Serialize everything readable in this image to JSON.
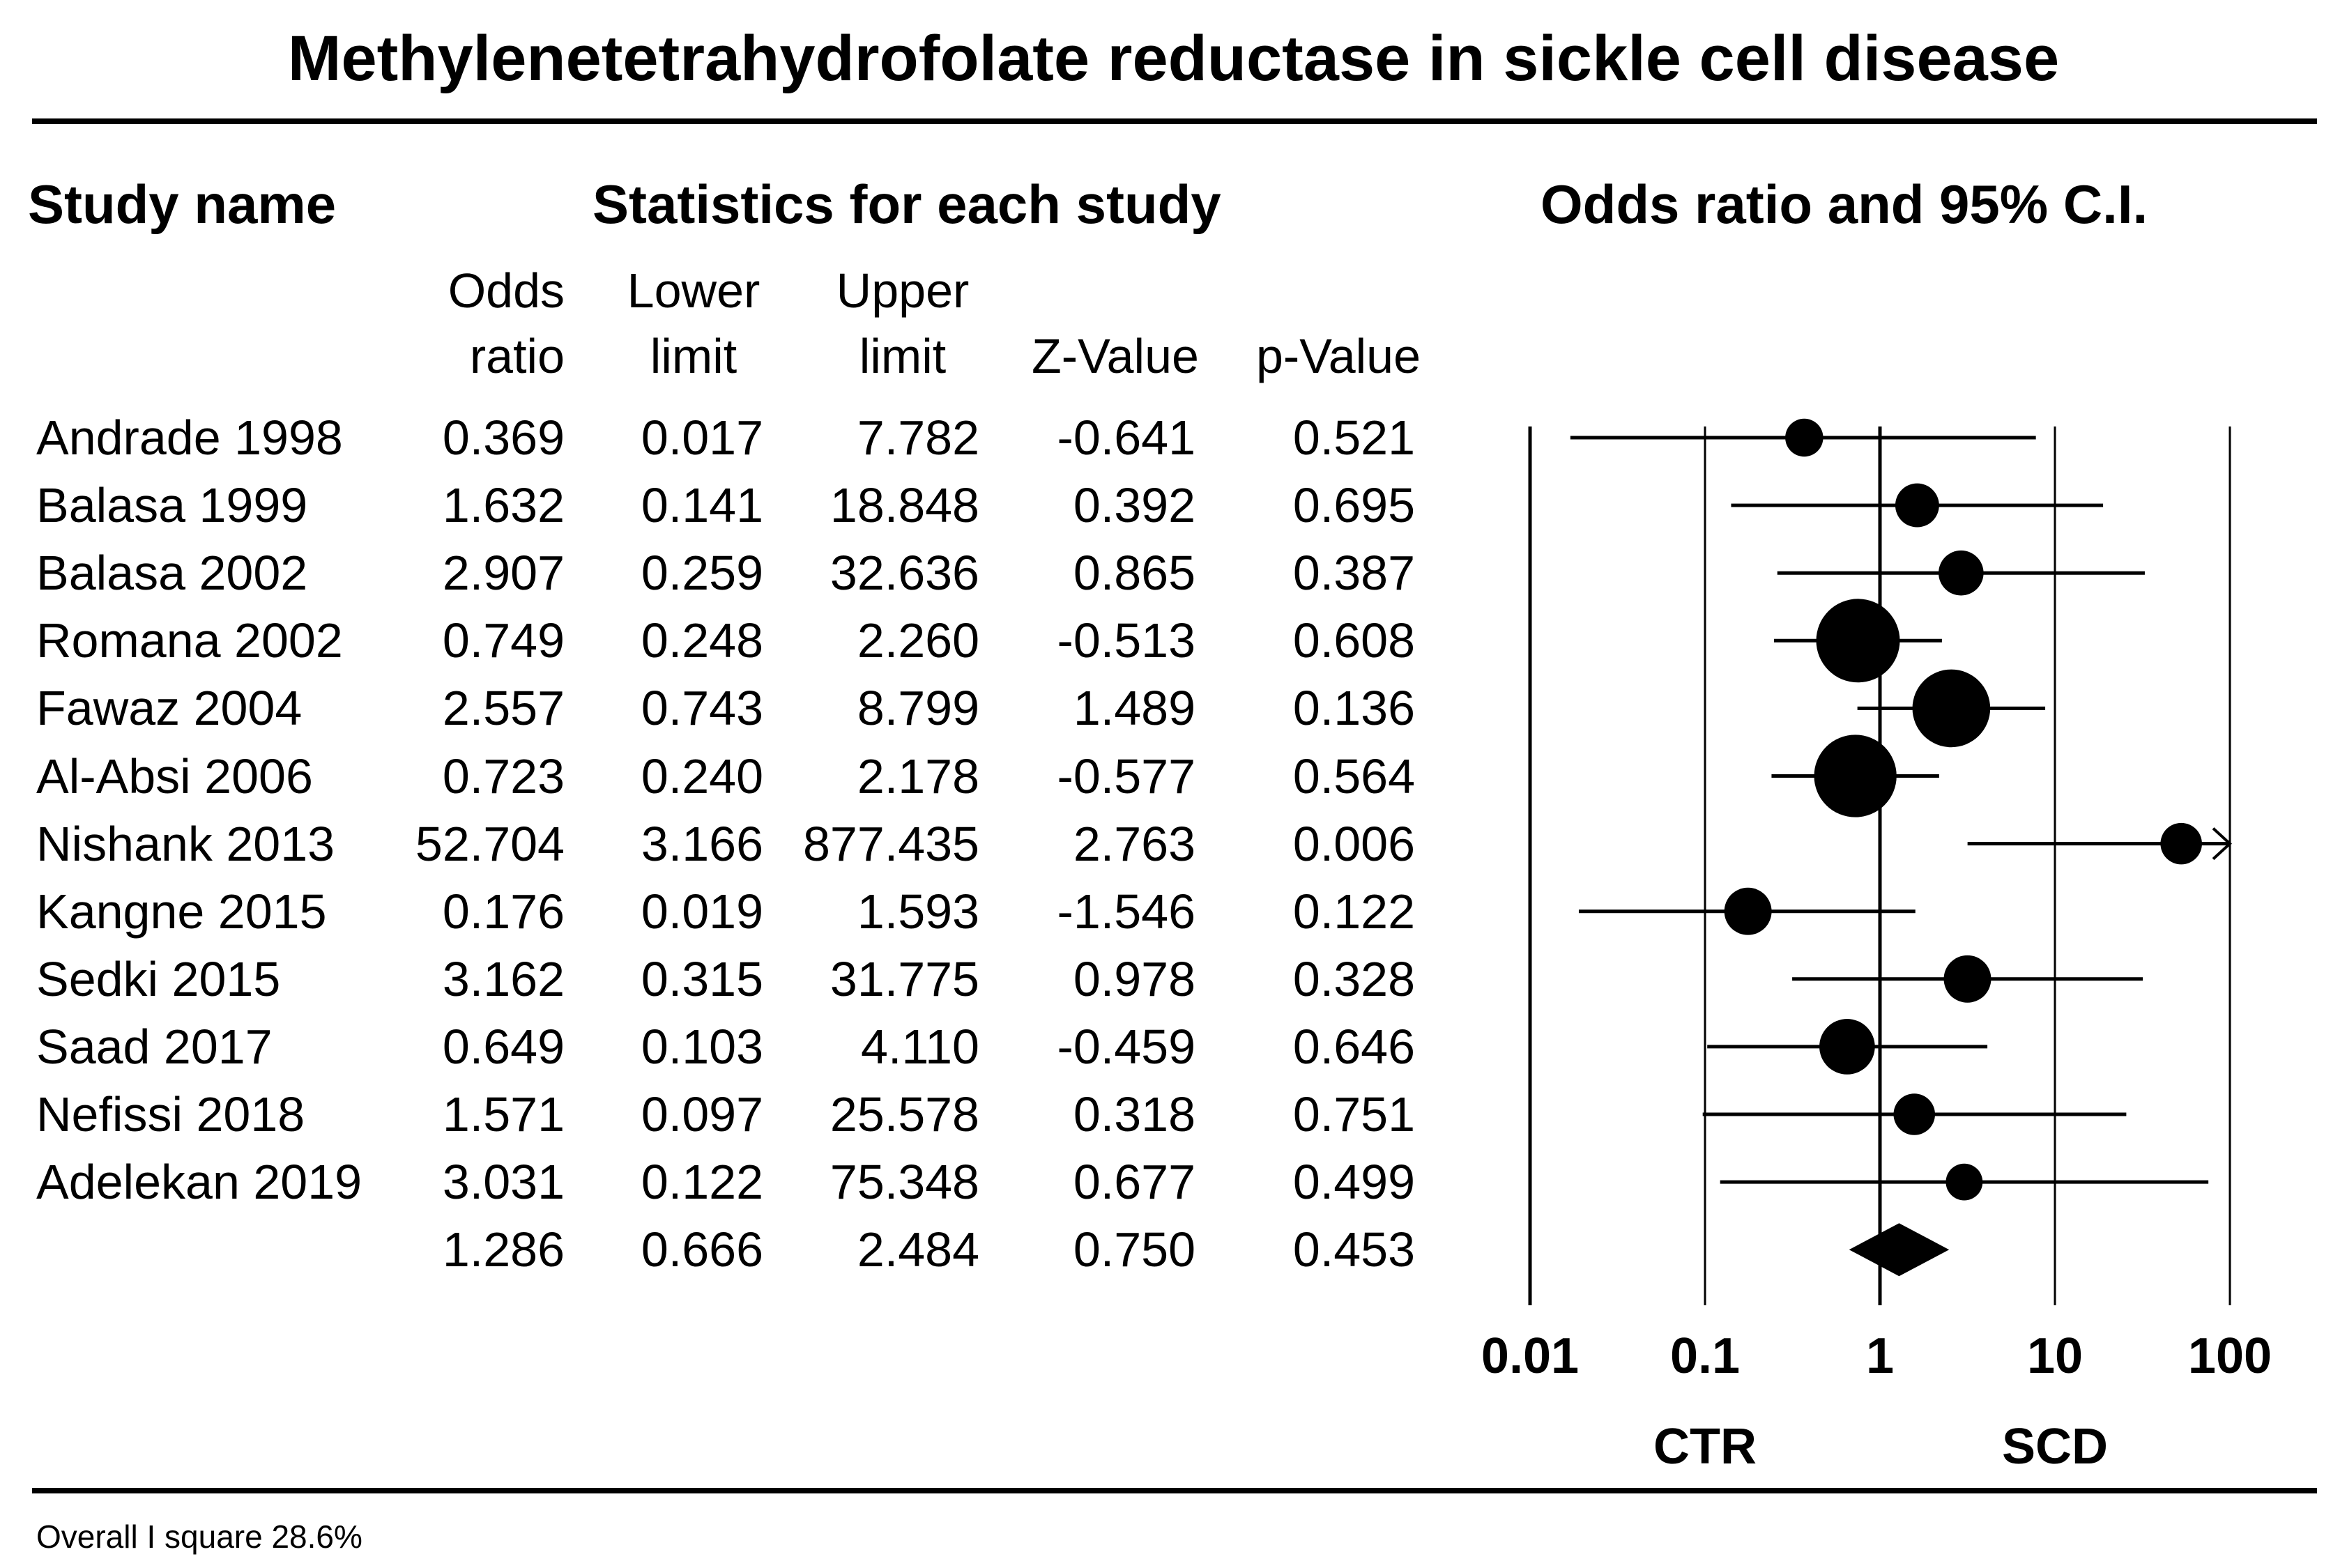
{
  "title": "Methylenetetrahydrofolate reductase in sickle cell disease",
  "headers": {
    "study_name": "Study name",
    "statistics": "Statistics for each study",
    "plot": "Odds ratio and 95% C.I."
  },
  "columns": {
    "odds_ratio": [
      "Odds",
      "ratio"
    ],
    "lower_limit": [
      "Lower",
      "limit"
    ],
    "upper_limit": [
      "Upper",
      "limit"
    ],
    "z_value": "Z-Value",
    "p_value": "p-Value"
  },
  "table_rows": [
    {
      "study": "Andrade 1998",
      "or": "0.369",
      "lower": "0.017",
      "upper": "7.782",
      "z": "-0.641",
      "p": "0.521"
    },
    {
      "study": "Balasa 1999",
      "or": "1.632",
      "lower": "0.141",
      "upper": "18.848",
      "z": "0.392",
      "p": "0.695"
    },
    {
      "study": "Balasa 2002",
      "or": "2.907",
      "lower": "0.259",
      "upper": "32.636",
      "z": "0.865",
      "p": "0.387"
    },
    {
      "study": "Romana 2002",
      "or": "0.749",
      "lower": "0.248",
      "upper": "2.260",
      "z": "-0.513",
      "p": "0.608"
    },
    {
      "study": "Fawaz 2004",
      "or": "2.557",
      "lower": "0.743",
      "upper": "8.799",
      "z": "1.489",
      "p": "0.136"
    },
    {
      "study": "Al-Absi 2006",
      "or": "0.723",
      "lower": "0.240",
      "upper": "2.178",
      "z": "-0.577",
      "p": "0.564"
    },
    {
      "study": "Nishank 2013",
      "or": "52.704",
      "lower": "3.166",
      "upper": "877.435",
      "z": "2.763",
      "p": "0.006"
    },
    {
      "study": "Kangne 2015",
      "or": "0.176",
      "lower": "0.019",
      "upper": "1.593",
      "z": "-1.546",
      "p": "0.122"
    },
    {
      "study": "Sedki 2015",
      "or": "3.162",
      "lower": "0.315",
      "upper": "31.775",
      "z": "0.978",
      "p": "0.328"
    },
    {
      "study": "Saad 2017",
      "or": "0.649",
      "lower": "0.103",
      "upper": "4.110",
      "z": "-0.459",
      "p": "0.646"
    },
    {
      "study": "Nefissi 2018",
      "or": "1.571",
      "lower": "0.097",
      "upper": "25.578",
      "z": "0.318",
      "p": "0.751"
    },
    {
      "study": "Adelekan 2019",
      "or": "3.031",
      "lower": "0.122",
      "upper": "75.348",
      "z": "0.677",
      "p": "0.499"
    },
    {
      "study": "",
      "or": "1.286",
      "lower": "0.666",
      "upper": "2.484",
      "z": "0.750",
      "p": "0.453"
    }
  ],
  "footer": "Overall I square 28.6%",
  "chart_data": {
    "type": "forest",
    "title": "Odds ratio and 95% C.I.",
    "x_scale": "log",
    "xlim": [
      0.01,
      100
    ],
    "ticks": [
      0.01,
      0.1,
      1,
      10,
      100
    ],
    "tick_labels": [
      "0.01",
      "0.1",
      "1",
      "10",
      "100"
    ],
    "reference_line": 1,
    "left_label": "CTR",
    "right_label": "SCD",
    "studies": [
      {
        "name": "Andrade 1998",
        "or": 0.369,
        "lower": 0.017,
        "upper": 7.782,
        "weight": 0.22
      },
      {
        "name": "Balasa 1999",
        "or": 1.632,
        "lower": 0.141,
        "upper": 18.848,
        "weight": 0.32
      },
      {
        "name": "Balasa 2002",
        "or": 2.907,
        "lower": 0.259,
        "upper": 32.636,
        "weight": 0.34
      },
      {
        "name": "Romana 2002",
        "or": 0.749,
        "lower": 0.248,
        "upper": 2.26,
        "weight": 1.0
      },
      {
        "name": "Fawaz 2004",
        "or": 2.557,
        "lower": 0.743,
        "upper": 8.799,
        "weight": 0.9
      },
      {
        "name": "Al-Absi 2006",
        "or": 0.723,
        "lower": 0.24,
        "upper": 2.178,
        "weight": 0.98
      },
      {
        "name": "Nishank 2013",
        "or": 52.704,
        "lower": 3.166,
        "upper": 877.435,
        "weight": 0.28
      },
      {
        "name": "Kangne 2015",
        "or": 0.176,
        "lower": 0.019,
        "upper": 1.593,
        "weight": 0.38
      },
      {
        "name": "Sedki 2015",
        "or": 3.162,
        "lower": 0.315,
        "upper": 31.775,
        "weight": 0.38
      },
      {
        "name": "Saad 2017",
        "or": 0.649,
        "lower": 0.103,
        "upper": 4.11,
        "weight": 0.52
      },
      {
        "name": "Nefissi 2018",
        "or": 1.571,
        "lower": 0.097,
        "upper": 25.578,
        "weight": 0.28
      },
      {
        "name": "Adelekan 2019",
        "or": 3.031,
        "lower": 0.122,
        "upper": 75.348,
        "weight": 0.2
      }
    ],
    "summary": {
      "or": 1.286,
      "lower": 0.666,
      "upper": 2.484
    }
  }
}
